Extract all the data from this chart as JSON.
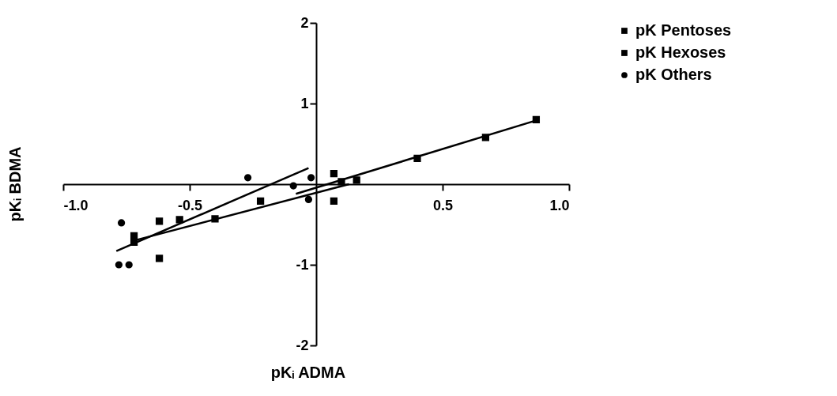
{
  "chart_data": {
    "type": "scatter",
    "xlabel": "pKᵢ ADMA",
    "ylabel": "pKᵢ BDMA",
    "xlim": [
      -1.0,
      1.0
    ],
    "ylim": [
      -2,
      2
    ],
    "xticks": [
      {
        "value": -1.0,
        "label": "-1.0"
      },
      {
        "value": -0.5,
        "label": "-0.5"
      },
      {
        "value": 0.5,
        "label": "0.5"
      },
      {
        "value": 1.0,
        "label": "1.0"
      }
    ],
    "yticks": [
      -2,
      -1,
      1,
      2
    ],
    "legend": "top right",
    "grid": false,
    "series": [
      {
        "name": "pK Pentoses",
        "color": "#000000",
        "marker": "square",
        "x": [
          0.07,
          0.1,
          0.4,
          0.67,
          0.87
        ],
        "values": [
          0.13,
          0.03,
          0.32,
          0.58,
          0.8
        ]
      },
      {
        "name": "pK Hexoses",
        "color": "#000000",
        "marker": "square",
        "x": [
          -0.72,
          -0.72,
          -0.62,
          -0.54,
          -0.4,
          -0.62,
          -0.22,
          0.07,
          0.16
        ],
        "values": [
          -0.64,
          -0.72,
          -0.46,
          -0.44,
          -0.43,
          -0.92,
          -0.21,
          -0.21,
          0.05
        ]
      },
      {
        "name": "pK Others",
        "color": "#000000",
        "marker": "circle",
        "x": [
          -0.77,
          -0.78,
          -0.74,
          -0.27,
          -0.09,
          -0.02,
          -0.03
        ],
        "values": [
          -0.48,
          -1.0,
          -1.0,
          0.08,
          -0.02,
          0.08,
          -0.19
        ]
      },
      {
        "type": "line",
        "color": "#000000",
        "x": [
          -0.08,
          0.88
        ],
        "values": [
          -0.12,
          0.8
        ]
      },
      {
        "type": "line",
        "color": "#000000",
        "x": [
          -0.72,
          0.13
        ],
        "values": [
          -0.7,
          0.0
        ]
      },
      {
        "type": "line",
        "color": "#000000",
        "x": [
          -0.79,
          -0.03
        ],
        "values": [
          -0.83,
          0.2
        ]
      }
    ]
  }
}
